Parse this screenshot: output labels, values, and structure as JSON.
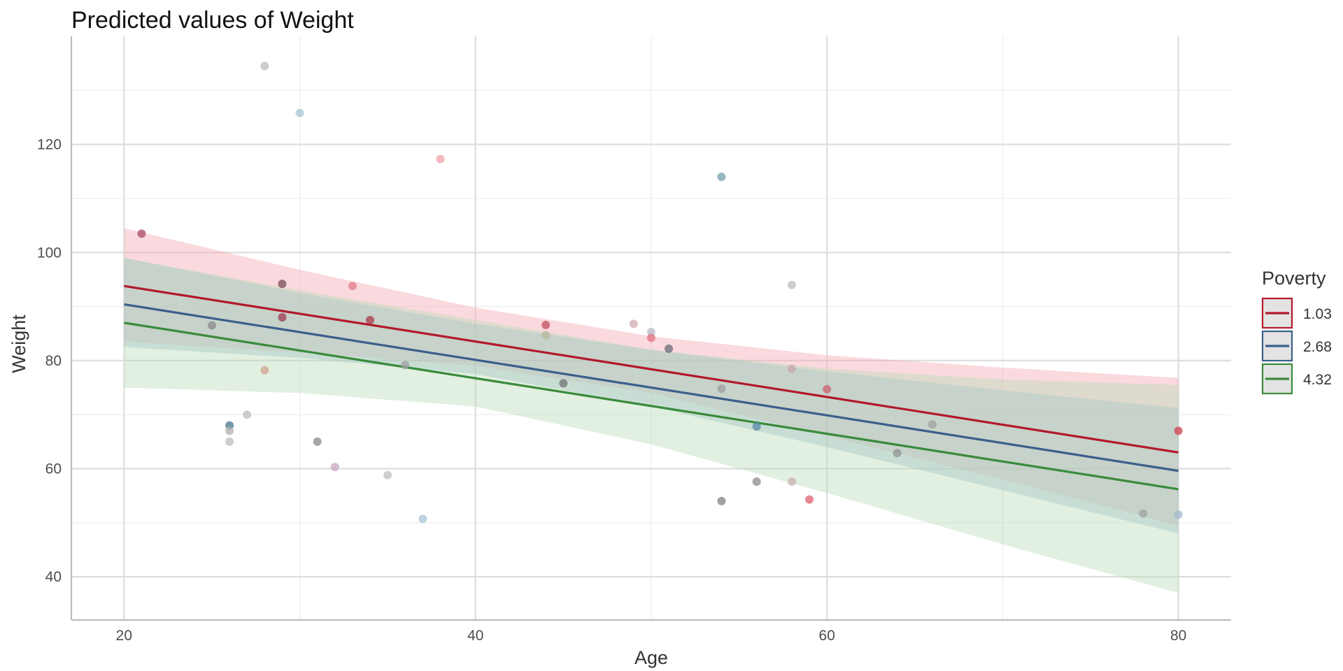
{
  "chart_data": {
    "type": "line",
    "title": "Predicted values of Weight",
    "xlabel": "Age",
    "ylabel": "Weight",
    "xlim": [
      17,
      83
    ],
    "ylim": [
      32,
      140
    ],
    "x_ticks": [
      20,
      40,
      60,
      80
    ],
    "y_ticks": [
      40,
      60,
      80,
      100,
      120
    ],
    "grid": true,
    "legend": {
      "title": "Poverty",
      "position": "right"
    },
    "series": [
      {
        "name": "1.03",
        "color": "#b2182b",
        "band_color": "#f4a6b0",
        "x": [
          20,
          80
        ],
        "y": [
          93.8,
          63.0
        ],
        "band_x": [
          20,
          30,
          40,
          50,
          60,
          70,
          80
        ],
        "band_lower": [
          83.5,
          81.5,
          79.0,
          74.0,
          66.0,
          58.0,
          49.5
        ],
        "band_upper": [
          104.5,
          96.8,
          89.8,
          84.5,
          81.0,
          78.7,
          76.8
        ]
      },
      {
        "name": "2.68",
        "color": "#3a5f8a",
        "band_color": "#98b8cc",
        "x": [
          20,
          80
        ],
        "y": [
          90.4,
          59.6
        ],
        "band_x": [
          20,
          30,
          40,
          50,
          60,
          70,
          80
        ],
        "band_lower": [
          82.5,
          80.5,
          77.5,
          71.5,
          64.0,
          56.0,
          48.0
        ],
        "band_upper": [
          99.0,
          92.5,
          86.8,
          82.0,
          78.0,
          74.5,
          71.2
        ]
      },
      {
        "name": "4.32",
        "color": "#3a8a3a",
        "band_color": "#b7dcb7",
        "x": [
          20,
          80
        ],
        "y": [
          87.0,
          56.2
        ],
        "band_x": [
          20,
          30,
          40,
          50,
          60,
          70,
          80
        ],
        "band_lower": [
          75.0,
          74.0,
          71.5,
          64.5,
          55.5,
          46.0,
          37.0
        ],
        "band_upper": [
          99.0,
          93.0,
          87.5,
          82.0,
          78.5,
          76.5,
          75.5
        ]
      }
    ],
    "points": [
      {
        "x": 21,
        "y": 103.5,
        "color": "#a8486a"
      },
      {
        "x": 25,
        "y": 86.5,
        "color": "#8a8a8a"
      },
      {
        "x": 26,
        "y": 68.0,
        "color": "#45758e"
      },
      {
        "x": 26,
        "y": 67.0,
        "color": "#b0b0b0"
      },
      {
        "x": 26,
        "y": 65.0,
        "color": "#bdbdbd"
      },
      {
        "x": 27,
        "y": 70.0,
        "color": "#bdbdbd"
      },
      {
        "x": 28,
        "y": 134.5,
        "color": "#bdbdbd"
      },
      {
        "x": 28,
        "y": 78.2,
        "color": "#d2a48e"
      },
      {
        "x": 29,
        "y": 94.2,
        "color": "#7a4a58"
      },
      {
        "x": 29,
        "y": 88.0,
        "color": "#9e3a4c"
      },
      {
        "x": 30,
        "y": 125.8,
        "color": "#a8c4d4"
      },
      {
        "x": 31,
        "y": 65.0,
        "color": "#888888"
      },
      {
        "x": 32,
        "y": 60.3,
        "color": "#c8a8c0"
      },
      {
        "x": 33,
        "y": 93.8,
        "color": "#e07a88"
      },
      {
        "x": 34,
        "y": 87.5,
        "color": "#a83848"
      },
      {
        "x": 35,
        "y": 58.8,
        "color": "#bdbdbd"
      },
      {
        "x": 36,
        "y": 79.2,
        "color": "#9e9e9e"
      },
      {
        "x": 37,
        "y": 50.7,
        "color": "#a8c4d4"
      },
      {
        "x": 38,
        "y": 117.3,
        "color": "#f0a0a8"
      },
      {
        "x": 44,
        "y": 86.6,
        "color": "#c05060"
      },
      {
        "x": 44,
        "y": 84.7,
        "color": "#b8b89a"
      },
      {
        "x": 45,
        "y": 75.8,
        "color": "#707070"
      },
      {
        "x": 49,
        "y": 86.8,
        "color": "#d0a8b0"
      },
      {
        "x": 50,
        "y": 85.3,
        "color": "#b8b8c4"
      },
      {
        "x": 50,
        "y": 84.2,
        "color": "#e07080"
      },
      {
        "x": 51,
        "y": 82.2,
        "color": "#6a6a7a"
      },
      {
        "x": 54,
        "y": 114.0,
        "color": "#70a0a8"
      },
      {
        "x": 54,
        "y": 74.8,
        "color": "#9e9e9e"
      },
      {
        "x": 54,
        "y": 54.0,
        "color": "#808080"
      },
      {
        "x": 56,
        "y": 67.8,
        "color": "#5a88a8"
      },
      {
        "x": 56,
        "y": 57.6,
        "color": "#8a8a8a"
      },
      {
        "x": 58,
        "y": 94.0,
        "color": "#bdbdbd"
      },
      {
        "x": 58,
        "y": 78.5,
        "color": "#c8a8a8"
      },
      {
        "x": 58,
        "y": 57.6,
        "color": "#c8b0b0"
      },
      {
        "x": 59,
        "y": 54.3,
        "color": "#e06070"
      },
      {
        "x": 60,
        "y": 74.7,
        "color": "#d06070"
      },
      {
        "x": 64,
        "y": 62.9,
        "color": "#909090"
      },
      {
        "x": 66,
        "y": 68.2,
        "color": "#a0a0a0"
      },
      {
        "x": 78,
        "y": 51.7,
        "color": "#a0a0a0"
      },
      {
        "x": 80,
        "y": 67.0,
        "color": "#d04050"
      },
      {
        "x": 80,
        "y": 51.5,
        "color": "#a0b8cc"
      }
    ]
  }
}
